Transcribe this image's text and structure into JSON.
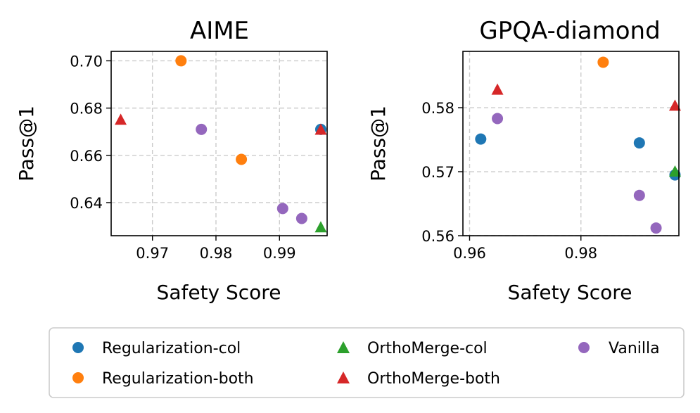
{
  "legend": [
    {
      "name": "Regularization-col",
      "marker": "circle",
      "color": "#1f77b4"
    },
    {
      "name": "Regularization-both",
      "marker": "circle",
      "color": "#ff7f0e"
    },
    {
      "name": "OrthoMerge-col",
      "marker": "triangle",
      "color": "#2ca02c"
    },
    {
      "name": "OrthoMerge-both",
      "marker": "triangle",
      "color": "#d62728"
    },
    {
      "name": "Vanilla",
      "marker": "circle",
      "color": "#9467bd"
    }
  ],
  "chart_data": [
    {
      "type": "scatter",
      "title": "AIME",
      "xlabel": "Safety Score",
      "ylabel": "Pass@1",
      "xlim": [
        0.9635,
        0.9975
      ],
      "ylim": [
        0.626,
        0.704
      ],
      "xticks": [
        0.97,
        0.98,
        0.99
      ],
      "xtick_labels": [
        "0.97",
        "0.98",
        "0.99"
      ],
      "yticks": [
        0.64,
        0.66,
        0.68,
        0.7
      ],
      "ytick_labels": [
        "0.64",
        "0.66",
        "0.68",
        "0.70"
      ],
      "grid": true,
      "series": [
        {
          "name": "Regularization-col",
          "points": [
            {
              "x": 0.9965,
              "y": 0.671
            }
          ]
        },
        {
          "name": "Regularization-both",
          "points": [
            {
              "x": 0.9745,
              "y": 0.7
            },
            {
              "x": 0.984,
              "y": 0.6583
            }
          ]
        },
        {
          "name": "OrthoMerge-col",
          "points": [
            {
              "x": 0.9965,
              "y": 0.6295
            }
          ]
        },
        {
          "name": "OrthoMerge-both",
          "points": [
            {
              "x": 0.965,
              "y": 0.675
            },
            {
              "x": 0.9965,
              "y": 0.6708
            }
          ]
        },
        {
          "name": "Vanilla",
          "points": [
            {
              "x": 0.9777,
              "y": 0.671
            },
            {
              "x": 0.9905,
              "y": 0.6375
            },
            {
              "x": 0.9935,
              "y": 0.6333
            }
          ]
        }
      ]
    },
    {
      "type": "scatter",
      "title": "GPQA-diamond",
      "xlabel": "Safety Score",
      "ylabel": "Pass@1",
      "xlim": [
        0.9588,
        0.9976
      ],
      "ylim": [
        0.56,
        0.5888
      ],
      "xticks": [
        0.96,
        0.98
      ],
      "xtick_labels": [
        "0.96",
        "0.98"
      ],
      "yticks": [
        0.56,
        0.57,
        0.58
      ],
      "ytick_labels": [
        "0.56",
        "0.57",
        "0.58"
      ],
      "grid": true,
      "series": [
        {
          "name": "Regularization-col",
          "points": [
            {
              "x": 0.962,
              "y": 0.5751
            },
            {
              "x": 0.9905,
              "y": 0.5745
            },
            {
              "x": 0.9969,
              "y": 0.5695
            }
          ]
        },
        {
          "name": "Regularization-both",
          "points": [
            {
              "x": 0.984,
              "y": 0.5871
            }
          ]
        },
        {
          "name": "OrthoMerge-col",
          "points": [
            {
              "x": 0.9969,
              "y": 0.57
            }
          ]
        },
        {
          "name": "OrthoMerge-both",
          "points": [
            {
              "x": 0.965,
              "y": 0.5828
            },
            {
              "x": 0.9969,
              "y": 0.5803
            }
          ]
        },
        {
          "name": "Vanilla",
          "points": [
            {
              "x": 0.965,
              "y": 0.5783
            },
            {
              "x": 0.9905,
              "y": 0.5663
            },
            {
              "x": 0.9935,
              "y": 0.5612
            }
          ]
        }
      ]
    }
  ]
}
